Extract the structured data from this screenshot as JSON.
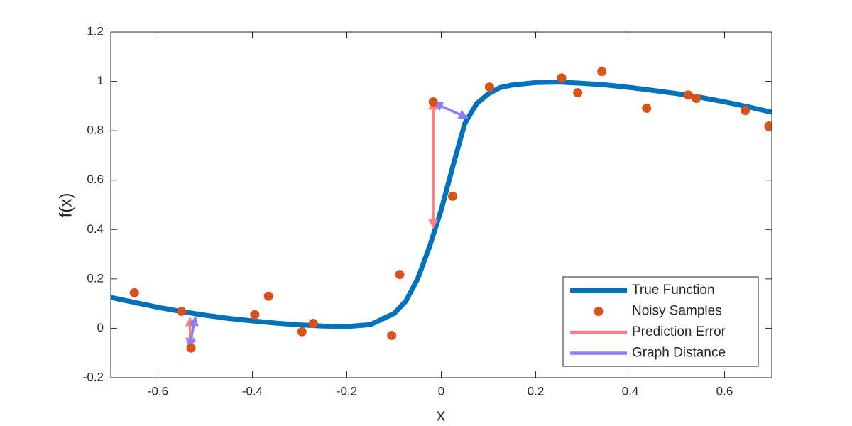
{
  "chart_data": {
    "type": "line",
    "xlabel": "x",
    "ylabel": "f(x)",
    "xlim": [
      -0.7,
      0.7
    ],
    "ylim": [
      -0.2,
      1.2
    ],
    "xticks": [
      -0.6,
      -0.4,
      -0.2,
      0,
      0.2,
      0.4,
      0.6
    ],
    "yticks": [
      -0.2,
      0,
      0.2,
      0.4,
      0.6,
      0.8,
      1,
      1.2
    ],
    "legend": "lower right",
    "grid": false,
    "series": [
      {
        "name": "True Function",
        "kind": "line",
        "color": "#0072bd",
        "x": [
          -0.7,
          -0.65,
          -0.6,
          -0.55,
          -0.5,
          -0.45,
          -0.4,
          -0.35,
          -0.3,
          -0.25,
          -0.2,
          -0.15,
          -0.1,
          -0.075,
          -0.05,
          -0.025,
          0,
          0.025,
          0.05,
          0.075,
          0.1,
          0.125,
          0.15,
          0.2,
          0.25,
          0.3,
          0.35,
          0.4,
          0.45,
          0.5,
          0.55,
          0.6,
          0.65,
          0.7
        ],
        "values": [
          0.125,
          0.105,
          0.085,
          0.068,
          0.053,
          0.04,
          0.03,
          0.021,
          0.014,
          0.009,
          0.007,
          0.015,
          0.06,
          0.11,
          0.2,
          0.33,
          0.48,
          0.66,
          0.83,
          0.91,
          0.95,
          0.975,
          0.985,
          0.995,
          0.997,
          0.992,
          0.985,
          0.975,
          0.963,
          0.95,
          0.935,
          0.917,
          0.897,
          0.875
        ]
      },
      {
        "name": "Noisy Samples",
        "kind": "scatter",
        "color": "#d95319",
        "x": [
          -0.65,
          -0.55,
          -0.53,
          -0.395,
          -0.366,
          -0.295,
          -0.271,
          -0.105,
          -0.088,
          -0.017,
          0.024,
          0.102,
          0.255,
          0.289,
          0.34,
          0.435,
          0.523,
          0.54,
          0.644,
          0.694
        ],
        "values": [
          0.144,
          0.069,
          -0.08,
          0.055,
          0.13,
          -0.014,
          0.02,
          -0.029,
          0.218,
          0.917,
          0.535,
          0.977,
          1.014,
          0.954,
          1.04,
          0.891,
          0.945,
          0.931,
          0.882,
          0.819
        ]
      },
      {
        "name": "Prediction Error",
        "kind": "arrow",
        "color": "#ff8080",
        "x": [
          [
            -0.017,
            -0.017
          ],
          [
            -0.532,
            -0.532
          ]
        ],
        "values": [
          [
            0.917,
            0.41
          ],
          [
            0.04,
            -0.07
          ]
        ]
      },
      {
        "name": "Graph Distance",
        "kind": "arrow",
        "color": "#8c7cff",
        "x": [
          [
            -0.014,
            0.054
          ],
          [
            -0.521,
            -0.533
          ]
        ],
        "values": [
          [
            0.912,
            0.853
          ],
          [
            0.043,
            -0.075
          ]
        ]
      }
    ]
  }
}
